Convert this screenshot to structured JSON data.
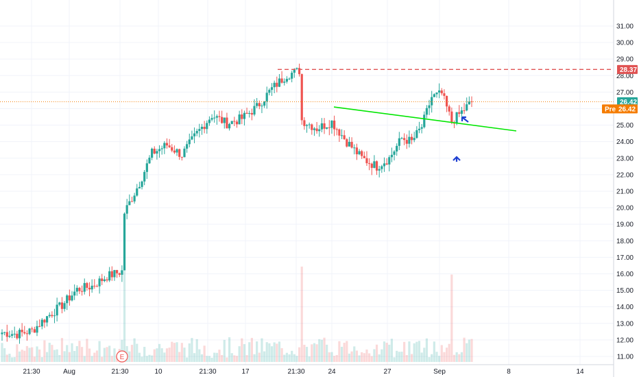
{
  "chart_data": {
    "type": "candlestick",
    "y_axis": {
      "position": "right",
      "ylim": [
        10.5,
        31.5
      ],
      "ticks": [
        "11.00",
        "12.00",
        "13.00",
        "14.00",
        "15.00",
        "16.00",
        "17.00",
        "18.00",
        "19.00",
        "20.00",
        "21.00",
        "22.00",
        "23.00",
        "24.00",
        "25.00",
        "26.00",
        "27.00",
        "28.00",
        "29.00",
        "30.00",
        "31.00"
      ]
    },
    "x_axis": {
      "tick_labels": [
        "21:30",
        "Aug",
        "21:30",
        "10",
        "21:30",
        "17",
        "21:30",
        "24",
        "27",
        "Sep",
        "8",
        "14"
      ]
    },
    "grid": true,
    "colors": {
      "up": "#26a69a",
      "down": "#ef5350",
      "trendline": "#00e600",
      "resistance": "#e05252",
      "marker": "#1f3fd1",
      "pre": "#f57c00"
    },
    "price_labels": {
      "resistance": {
        "value": 28.37,
        "label": "28.37"
      },
      "last": {
        "value": 26.42,
        "label": "26.42"
      },
      "pre": {
        "value": 25.98,
        "tag": "Pre",
        "label": "26.42"
      }
    },
    "earnings_marker": "E",
    "trendline": {
      "from": 26.1,
      "to": 24.65
    },
    "candle_anchors": [
      [
        0,
        12.45
      ],
      [
        6,
        12.35
      ],
      [
        12,
        12.55
      ],
      [
        18,
        13.4
      ],
      [
        24,
        14.1
      ],
      [
        30,
        15.05
      ],
      [
        36,
        15.25
      ],
      [
        42,
        15.85
      ],
      [
        48,
        16.15
      ],
      [
        49,
        19.7
      ],
      [
        55,
        21.5
      ],
      [
        60,
        23.3
      ],
      [
        66,
        23.8
      ],
      [
        72,
        23.2
      ],
      [
        78,
        24.5
      ],
      [
        84,
        25.6
      ],
      [
        90,
        25.1
      ],
      [
        96,
        25.4
      ],
      [
        102,
        26.1
      ],
      [
        108,
        27.2
      ],
      [
        114,
        28.05
      ],
      [
        119,
        28.3
      ],
      [
        120,
        25.3
      ],
      [
        126,
        24.8
      ],
      [
        132,
        25.2
      ],
      [
        138,
        24.0
      ],
      [
        144,
        23.0
      ],
      [
        150,
        22.5
      ],
      [
        155,
        23.0
      ],
      [
        160,
        24.2
      ],
      [
        164,
        24.0
      ],
      [
        168,
        24.9
      ],
      [
        172,
        26.7
      ],
      [
        176,
        26.9
      ],
      [
        180,
        25.2
      ],
      [
        184,
        25.8
      ],
      [
        188,
        26.42
      ]
    ],
    "volume_range": [
      0,
      1
    ]
  }
}
